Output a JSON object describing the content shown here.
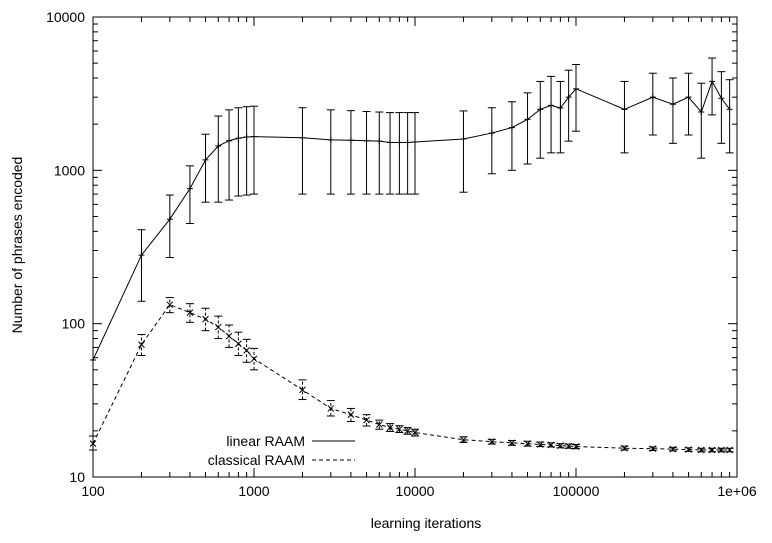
{
  "chart_data": {
    "type": "line",
    "title": "",
    "xlabel": "learning iterations",
    "ylabel": "Number of phrases encoded",
    "xscale": "log",
    "yscale": "log",
    "xlim": [
      100,
      1000000
    ],
    "ylim": [
      10,
      10000
    ],
    "grid": false,
    "legend_position": "bottom-left",
    "x_ticks": [
      {
        "value": 100,
        "label": "100"
      },
      {
        "value": 1000,
        "label": "1000"
      },
      {
        "value": 10000,
        "label": "10000"
      },
      {
        "value": 100000,
        "label": "100000"
      },
      {
        "value": 1000000,
        "label": "1e+06"
      }
    ],
    "y_ticks": [
      {
        "value": 10,
        "label": "10"
      },
      {
        "value": 100,
        "label": "100"
      },
      {
        "value": 1000,
        "label": "1000"
      },
      {
        "value": 10000,
        "label": "10000"
      }
    ],
    "series": [
      {
        "name": "linear RAAM",
        "style": "solid",
        "marker": "plus",
        "color": "#000000",
        "points": [
          {
            "x": 100,
            "y": 58,
            "lo": 58,
            "hi": 58
          },
          {
            "x": 200,
            "y": 280,
            "lo": 140,
            "hi": 410
          },
          {
            "x": 300,
            "y": 480,
            "lo": 270,
            "hi": 690
          },
          {
            "x": 400,
            "y": 760,
            "lo": 450,
            "hi": 1070
          },
          {
            "x": 500,
            "y": 1170,
            "lo": 620,
            "hi": 1720
          },
          {
            "x": 600,
            "y": 1440,
            "lo": 620,
            "hi": 2260
          },
          {
            "x": 700,
            "y": 1560,
            "lo": 640,
            "hi": 2480
          },
          {
            "x": 800,
            "y": 1620,
            "lo": 680,
            "hi": 2560
          },
          {
            "x": 900,
            "y": 1650,
            "lo": 690,
            "hi": 2600
          },
          {
            "x": 1000,
            "y": 1660,
            "lo": 700,
            "hi": 2620
          },
          {
            "x": 2000,
            "y": 1630,
            "lo": 700,
            "hi": 2560
          },
          {
            "x": 3000,
            "y": 1580,
            "lo": 700,
            "hi": 2480
          },
          {
            "x": 4000,
            "y": 1570,
            "lo": 700,
            "hi": 2450
          },
          {
            "x": 5000,
            "y": 1560,
            "lo": 700,
            "hi": 2420
          },
          {
            "x": 6000,
            "y": 1550,
            "lo": 700,
            "hi": 2400
          },
          {
            "x": 7000,
            "y": 1520,
            "lo": 700,
            "hi": 2380
          },
          {
            "x": 8000,
            "y": 1520,
            "lo": 700,
            "hi": 2380
          },
          {
            "x": 9000,
            "y": 1520,
            "lo": 700,
            "hi": 2380
          },
          {
            "x": 10000,
            "y": 1530,
            "lo": 700,
            "hi": 2380
          },
          {
            "x": 20000,
            "y": 1600,
            "lo": 720,
            "hi": 2440
          },
          {
            "x": 30000,
            "y": 1750,
            "lo": 950,
            "hi": 2560
          },
          {
            "x": 40000,
            "y": 1900,
            "lo": 1000,
            "hi": 2800
          },
          {
            "x": 50000,
            "y": 2150,
            "lo": 1100,
            "hi": 3200
          },
          {
            "x": 60000,
            "y": 2500,
            "lo": 1200,
            "hi": 3800
          },
          {
            "x": 70000,
            "y": 2650,
            "lo": 1300,
            "hi": 4100
          },
          {
            "x": 80000,
            "y": 2550,
            "lo": 1300,
            "hi": 3800
          },
          {
            "x": 90000,
            "y": 3000,
            "lo": 1550,
            "hi": 4500
          },
          {
            "x": 100000,
            "y": 3400,
            "lo": 1800,
            "hi": 4900
          },
          {
            "x": 200000,
            "y": 2500,
            "lo": 1300,
            "hi": 3800
          },
          {
            "x": 300000,
            "y": 3000,
            "lo": 1700,
            "hi": 4300
          },
          {
            "x": 400000,
            "y": 2700,
            "lo": 1500,
            "hi": 4000
          },
          {
            "x": 500000,
            "y": 3000,
            "lo": 1700,
            "hi": 4300
          },
          {
            "x": 600000,
            "y": 2400,
            "lo": 1200,
            "hi": 3700
          },
          {
            "x": 700000,
            "y": 3800,
            "lo": 2300,
            "hi": 5400
          },
          {
            "x": 800000,
            "y": 2950,
            "lo": 1500,
            "hi": 4400
          },
          {
            "x": 900000,
            "y": 2500,
            "lo": 1300,
            "hi": 3900
          }
        ]
      },
      {
        "name": "classical RAAM",
        "style": "dashed",
        "marker": "x",
        "color": "#000000",
        "points": [
          {
            "x": 100,
            "y": 16.5,
            "lo": 15.0,
            "hi": 18.5
          },
          {
            "x": 200,
            "y": 73,
            "lo": 62,
            "hi": 85
          },
          {
            "x": 300,
            "y": 133,
            "lo": 118,
            "hi": 148
          },
          {
            "x": 400,
            "y": 118,
            "lo": 102,
            "hi": 135
          },
          {
            "x": 500,
            "y": 107,
            "lo": 90,
            "hi": 126
          },
          {
            "x": 600,
            "y": 95,
            "lo": 80,
            "hi": 112
          },
          {
            "x": 700,
            "y": 83,
            "lo": 70,
            "hi": 98
          },
          {
            "x": 800,
            "y": 74,
            "lo": 62,
            "hi": 88
          },
          {
            "x": 900,
            "y": 67,
            "lo": 56,
            "hi": 79
          },
          {
            "x": 1000,
            "y": 59,
            "lo": 50,
            "hi": 69
          },
          {
            "x": 2000,
            "y": 37,
            "lo": 32,
            "hi": 43
          },
          {
            "x": 3000,
            "y": 28,
            "lo": 25,
            "hi": 31.5
          },
          {
            "x": 4000,
            "y": 25.5,
            "lo": 23,
            "hi": 28
          },
          {
            "x": 5000,
            "y": 23.5,
            "lo": 21.5,
            "hi": 25.5
          },
          {
            "x": 6000,
            "y": 22,
            "lo": 20.5,
            "hi": 23.5
          },
          {
            "x": 7000,
            "y": 21,
            "lo": 19.8,
            "hi": 22.3
          },
          {
            "x": 8000,
            "y": 20.5,
            "lo": 19.5,
            "hi": 21.6
          },
          {
            "x": 9000,
            "y": 20,
            "lo": 19,
            "hi": 21
          },
          {
            "x": 10000,
            "y": 19.5,
            "lo": 18.5,
            "hi": 20.5
          },
          {
            "x": 20000,
            "y": 17.5,
            "lo": 16.8,
            "hi": 18.3
          },
          {
            "x": 30000,
            "y": 17,
            "lo": 16.4,
            "hi": 17.6
          },
          {
            "x": 40000,
            "y": 16.7,
            "lo": 16.1,
            "hi": 17.3
          },
          {
            "x": 50000,
            "y": 16.5,
            "lo": 15.9,
            "hi": 17.1
          },
          {
            "x": 60000,
            "y": 16.3,
            "lo": 15.8,
            "hi": 16.9
          },
          {
            "x": 70000,
            "y": 16.2,
            "lo": 15.7,
            "hi": 16.7
          },
          {
            "x": 80000,
            "y": 16.0,
            "lo": 15.5,
            "hi": 16.5
          },
          {
            "x": 90000,
            "y": 15.9,
            "lo": 15.4,
            "hi": 16.4
          },
          {
            "x": 100000,
            "y": 15.8,
            "lo": 15.3,
            "hi": 16.3
          },
          {
            "x": 200000,
            "y": 15.4,
            "lo": 15.0,
            "hi": 15.9
          },
          {
            "x": 300000,
            "y": 15.3,
            "lo": 14.9,
            "hi": 15.7
          },
          {
            "x": 400000,
            "y": 15.2,
            "lo": 14.8,
            "hi": 15.6
          },
          {
            "x": 500000,
            "y": 15.1,
            "lo": 14.7,
            "hi": 15.5
          },
          {
            "x": 600000,
            "y": 15.0,
            "lo": 14.6,
            "hi": 15.4
          },
          {
            "x": 700000,
            "y": 15.0,
            "lo": 14.6,
            "hi": 15.4
          },
          {
            "x": 800000,
            "y": 15.0,
            "lo": 14.6,
            "hi": 15.4
          },
          {
            "x": 900000,
            "y": 15.0,
            "lo": 14.6,
            "hi": 15.4
          }
        ]
      }
    ]
  }
}
